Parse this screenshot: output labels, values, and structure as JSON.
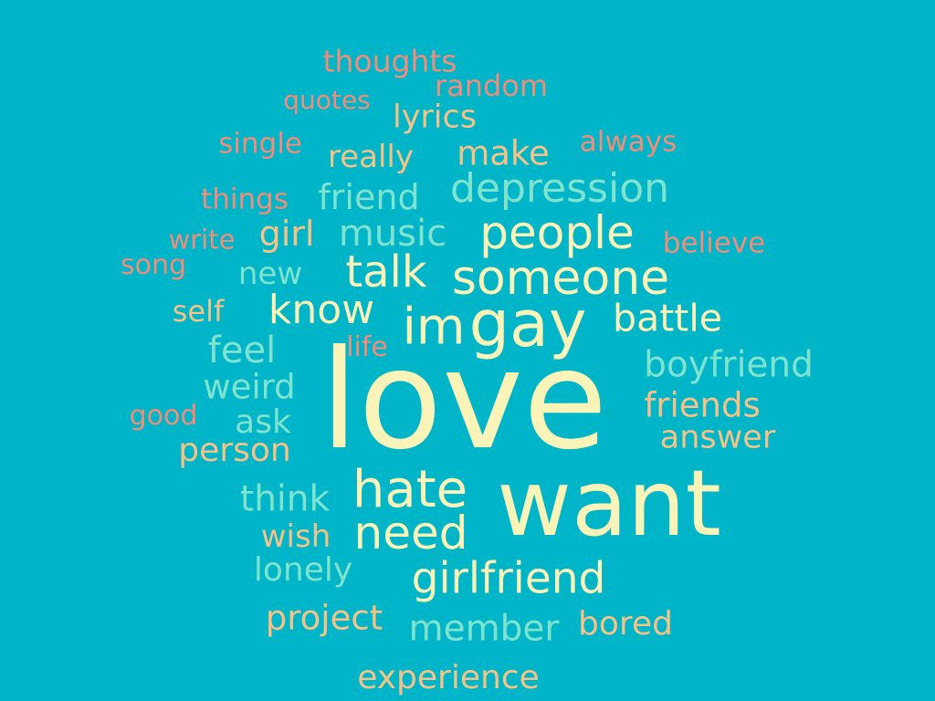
{
  "background_color": "#00b5c8",
  "palette": {
    "light_orange": "#f6c288",
    "salmon": "#f18d7a",
    "mint": "#7fe3d0",
    "cream": "#fbf4b8"
  },
  "words": {
    "thoughts": "thoughts",
    "random": "random",
    "quotes": "quotes",
    "lyrics": "lyrics",
    "single": "single",
    "always": "always",
    "really": "really",
    "make": "make",
    "depression": "depression",
    "things": "things",
    "friend": "friend",
    "girl": "girl",
    "music": "music",
    "people": "people",
    "write": "write",
    "believe": "believe",
    "song": "song",
    "new": "new",
    "talk": "talk",
    "someone": "someone",
    "self": "self",
    "know": "know",
    "im": "im",
    "gay": "gay",
    "battle": "battle",
    "feel": "feel",
    "life": "life",
    "boyfriend": "boyfriend",
    "love": "love",
    "weird": "weird",
    "friends": "friends",
    "good": "good",
    "ask": "ask",
    "answer": "answer",
    "person": "person",
    "hate": "hate",
    "want": "want",
    "think": "think",
    "need": "need",
    "wish": "wish",
    "lonely": "lonely",
    "girlfriend": "girlfriend",
    "project": "project",
    "bored": "bored",
    "member": "member",
    "experience": "experience"
  }
}
